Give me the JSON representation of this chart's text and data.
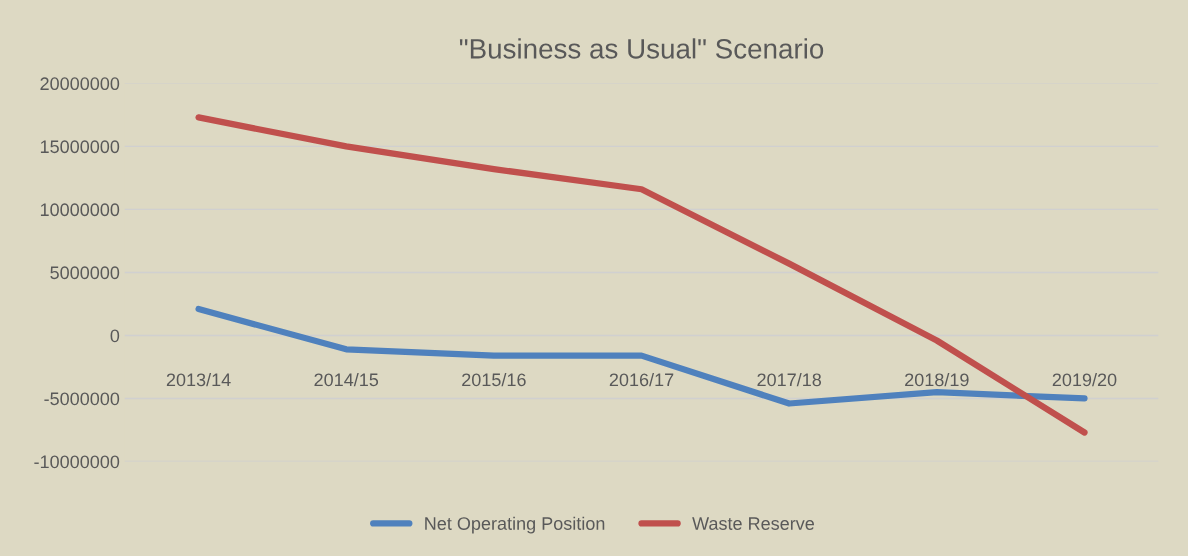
{
  "chart_data": {
    "type": "line",
    "title": "\"Business as Usual\" Scenario",
    "categories": [
      "2013/14",
      "2014/15",
      "2015/16",
      "2016/17",
      "2017/18",
      "2018/19",
      "2019/20"
    ],
    "series": [
      {
        "name": "Net Operating Position",
        "color": "#4f81bd",
        "values": [
          2100000,
          -1100000,
          -1600000,
          -1600000,
          -5400000,
          -4500000,
          -5000000
        ]
      },
      {
        "name": "Waste Reserve",
        "color": "#c0504d",
        "values": [
          17300000,
          15000000,
          13200000,
          11600000,
          5700000,
          -400000,
          -7700000
        ]
      }
    ],
    "ylim": [
      -10000000,
      20000000
    ],
    "yticks": [
      -10000000,
      -5000000,
      0,
      5000000,
      10000000,
      15000000,
      20000000
    ],
    "grid": "y",
    "legend": "bottom",
    "marker": "none",
    "line_style": "solid"
  }
}
